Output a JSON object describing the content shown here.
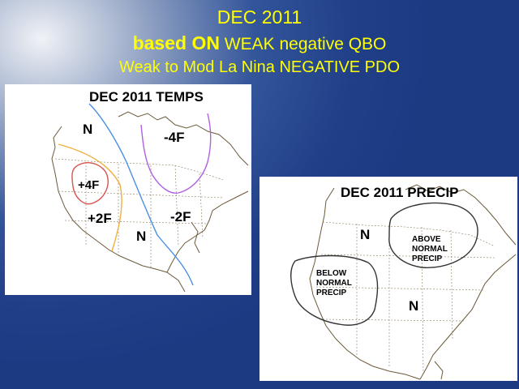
{
  "header": {
    "line1": "DEC  2011",
    "line2_bold": "based  ON",
    "line2_rest": " WEAK   negative  QBO",
    "line3": "Weak to Mod  La Nina  NEGATIVE  PDO"
  },
  "temps_map": {
    "title": "DEC  2011 TEMPS",
    "labels": {
      "north_normal": "N",
      "cold_north": "-4F",
      "warm_core": "+4F",
      "warm_outer": "+2F",
      "cold_southeast": "-2F",
      "south_normal": "N"
    },
    "contour_colors": {
      "warm_core": "#d9534f",
      "warm_outer": "#f0b040",
      "normal_line": "#4a90e2",
      "cold_line": "#b060e0"
    }
  },
  "precip_map": {
    "title": "DEC  2011 PRECIP",
    "labels": {
      "north_normal": "N",
      "above_line1": "ABOVE",
      "above_line2": "NORMAL",
      "above_line3": "PRECIP",
      "below_line1": "BELOW",
      "below_line2": "NORMAL",
      "below_line3": "PRECIP",
      "south_normal": "N"
    },
    "outline_color": "#333333"
  }
}
